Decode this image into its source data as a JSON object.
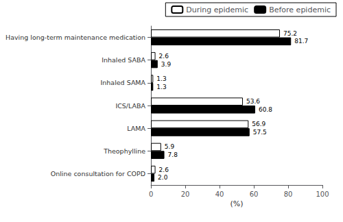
{
  "chart_data": {
    "type": "bar",
    "orientation": "horizontal",
    "categories": [
      "Online consultation for COPD",
      "Theophylline",
      "LAMA",
      "ICS/LABA",
      "Inhaled SAMA",
      "Inhaled SABA",
      "Having long-term maintenance medication"
    ],
    "series": [
      {
        "name": "During epidemic",
        "color": "#ffffff",
        "values": [
          2.6,
          5.9,
          56.9,
          53.6,
          1.3,
          2.6,
          75.2
        ],
        "value_labels": [
          "2.6",
          "5.9",
          "56.9",
          "53.6",
          "1.3",
          "2.6",
          "75.2"
        ]
      },
      {
        "name": "Before epidemic",
        "color": "#000000",
        "values": [
          2.0,
          7.8,
          57.5,
          60.8,
          1.3,
          3.9,
          81.7
        ],
        "value_labels": [
          "2.0",
          "7.8",
          "57.5",
          "60.8",
          "1.3",
          "3.9",
          "81.7"
        ]
      }
    ],
    "xlabel": "(%)",
    "xlim": [
      0,
      100
    ],
    "xticks": [
      0,
      20,
      40,
      60,
      80,
      100
    ],
    "data_labels": true,
    "legend": "upper right",
    "grid": false
  }
}
